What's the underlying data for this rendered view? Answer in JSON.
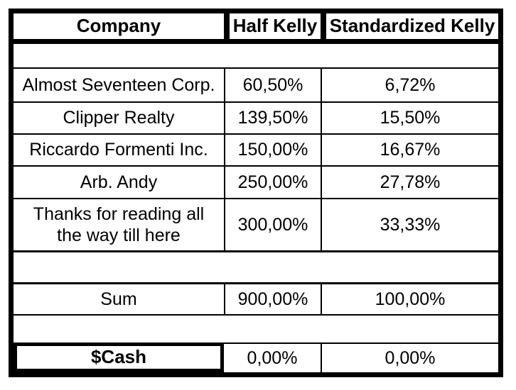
{
  "table": {
    "header": {
      "company": "Company",
      "half_kelly": "Half Kelly",
      "standardized_kelly": "Standardized Kelly"
    },
    "rows": [
      {
        "company": "Almost Seventeen Corp.",
        "half_kelly": "60,50%",
        "standardized_kelly": "6,72%"
      },
      {
        "company": "Clipper Realty",
        "half_kelly": "139,50%",
        "standardized_kelly": "15,50%"
      },
      {
        "company": "Riccardo Formenti Inc.",
        "half_kelly": "150,00%",
        "standardized_kelly": "16,67%"
      },
      {
        "company": "Arb. Andy",
        "half_kelly": "250,00%",
        "standardized_kelly": "27,78%"
      },
      {
        "company": "Thanks for reading all\nthe way till here",
        "half_kelly": "300,00%",
        "standardized_kelly": "33,33%"
      }
    ],
    "sum": {
      "label": "Sum",
      "half_kelly": "900,00%",
      "standardized_kelly": "100,00%"
    },
    "cash": {
      "label": "$Cash",
      "half_kelly": "0,00%",
      "standardized_kelly": "0,00%"
    },
    "colors": {
      "border": "#000000",
      "background": "#ffffff",
      "text": "#000000"
    }
  }
}
